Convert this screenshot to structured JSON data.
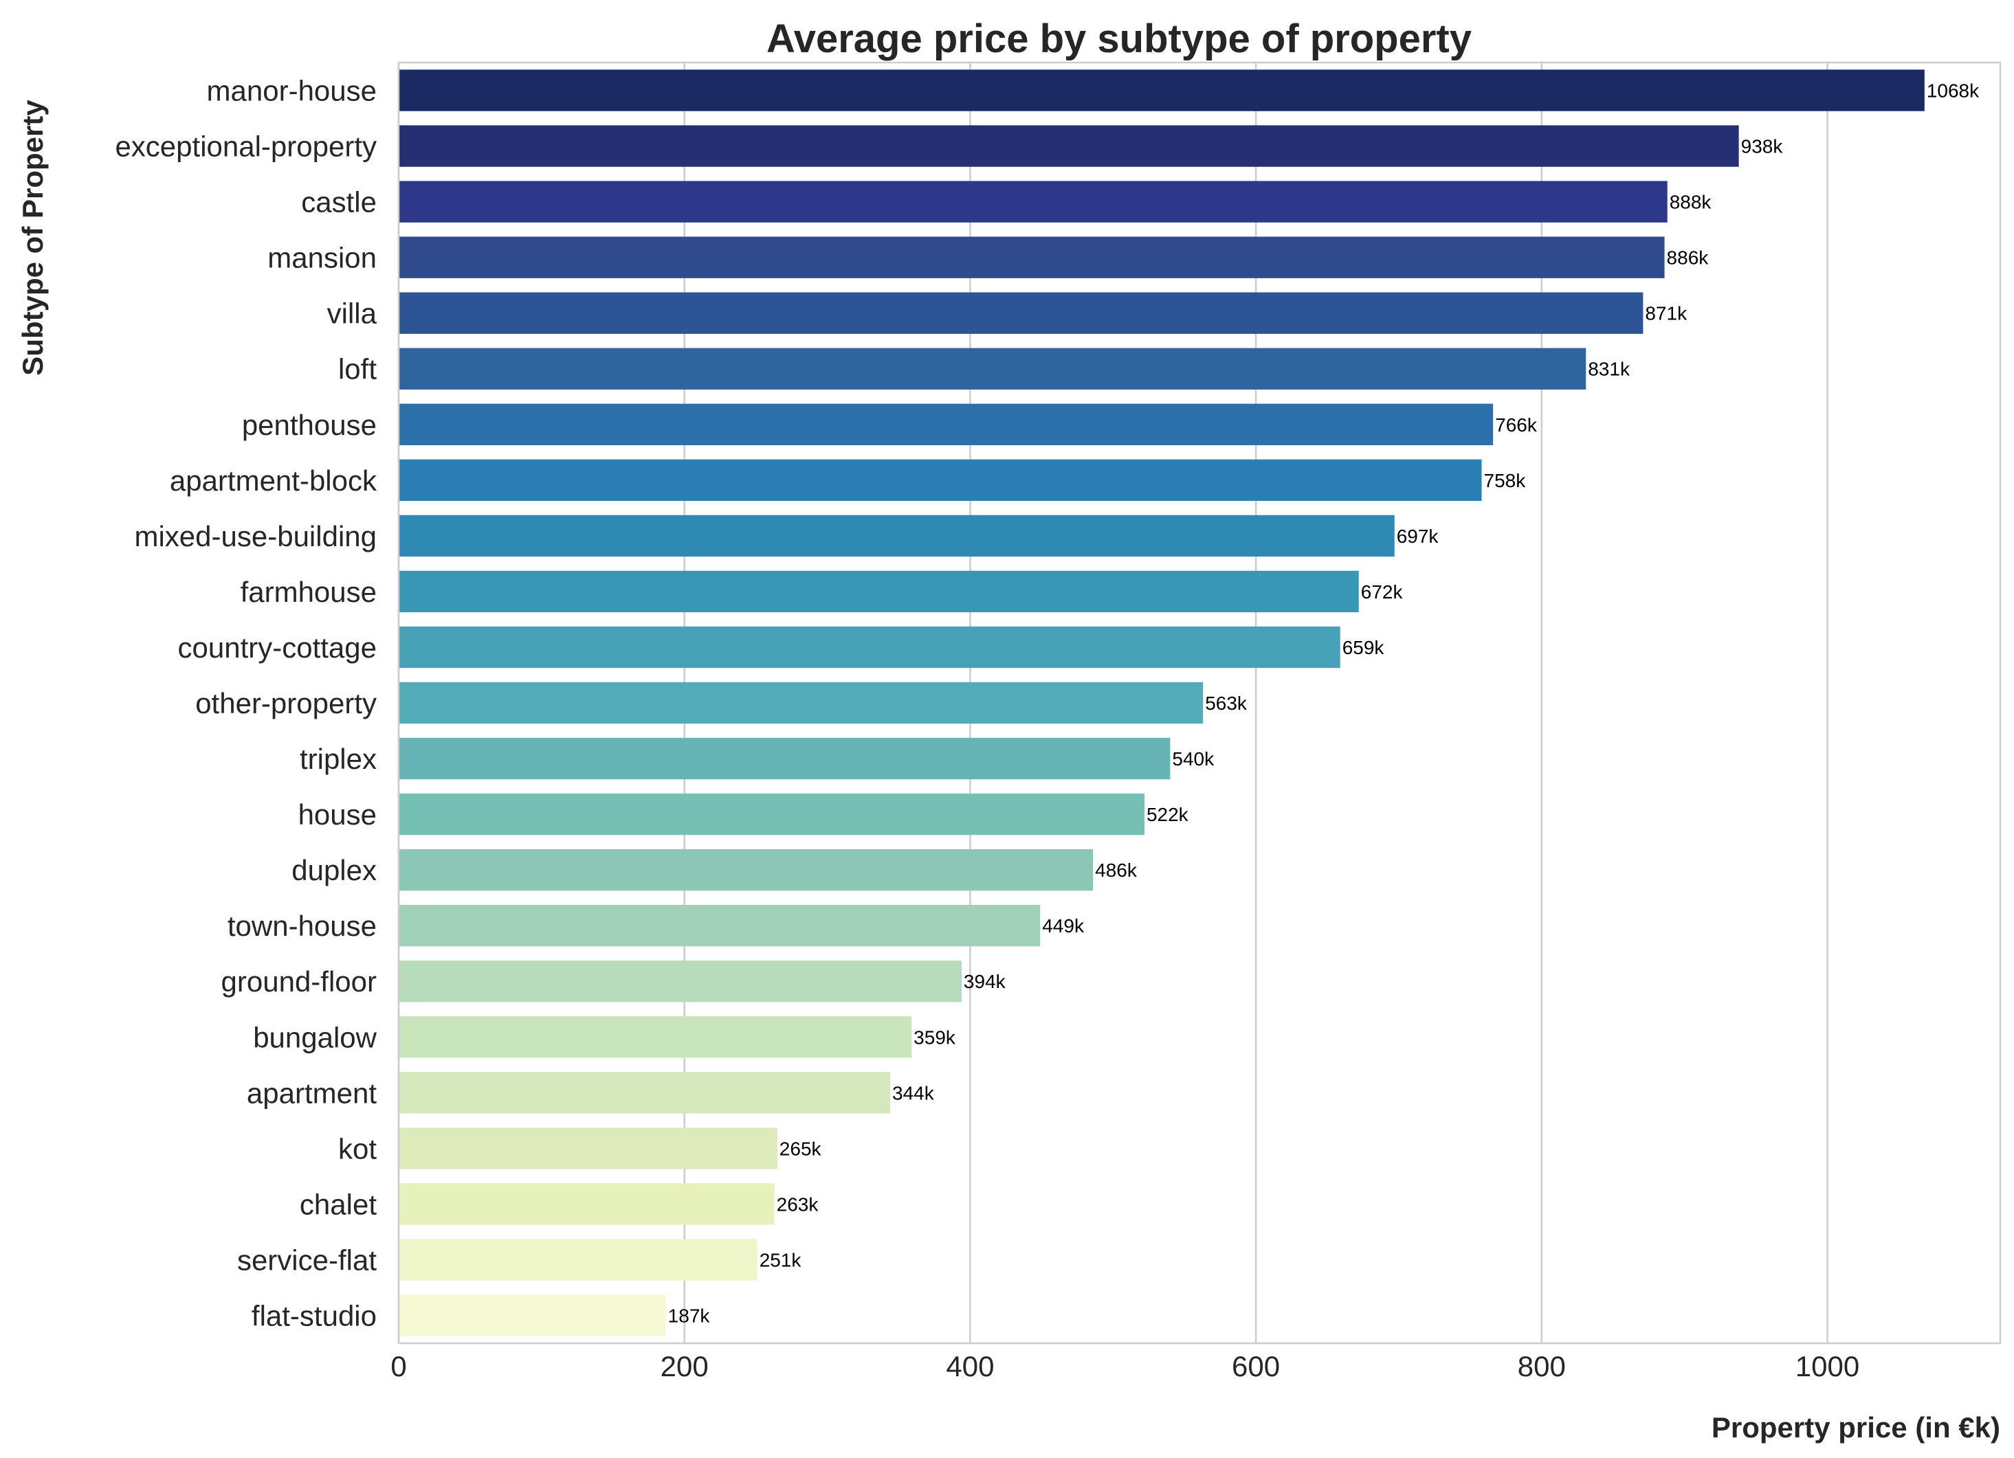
{
  "chart_data": {
    "type": "bar",
    "orientation": "horizontal",
    "title": "Average price by subtype of property",
    "xlabel": "Property price (in €k)",
    "ylabel": "Subtype of Property",
    "xlim": [
      0,
      1121
    ],
    "xticks": [
      0,
      200,
      400,
      600,
      800,
      1000
    ],
    "grid": "vertical",
    "categories": [
      "manor-house",
      "exceptional-property",
      "castle",
      "mansion",
      "villa",
      "loft",
      "penthouse",
      "apartment-block",
      "mixed-use-building",
      "farmhouse",
      "country-cottage",
      "other-property",
      "triplex",
      "house",
      "duplex",
      "town-house",
      "ground-floor",
      "bungalow",
      "apartment",
      "kot",
      "chalet",
      "service-flat",
      "flat-studio"
    ],
    "values": [
      1068,
      938,
      888,
      886,
      871,
      831,
      766,
      758,
      697,
      672,
      659,
      563,
      540,
      522,
      486,
      449,
      394,
      359,
      344,
      265,
      263,
      251,
      187
    ],
    "data_labels": [
      "1068k",
      "938k",
      "888k",
      "886k",
      "871k",
      "831k",
      "766k",
      "758k",
      "697k",
      "672k",
      "659k",
      "563k",
      "540k",
      "522k",
      "486k",
      "449k",
      "394k",
      "359k",
      "344k",
      "265k",
      "263k",
      "251k",
      "187k"
    ],
    "colors": [
      "#1c2a64",
      "#262f72",
      "#2e388a",
      "#304a8e",
      "#2d5595",
      "#2f649f",
      "#2b70aa",
      "#2a7eb3",
      "#2e8ab3",
      "#3a96b5",
      "#47a1b7",
      "#53abb7",
      "#66b4b6",
      "#76bfb5",
      "#8cc7b5",
      "#a0d0b7",
      "#b7dcbb",
      "#c9e5bc",
      "#d4e8bc",
      "#dfeabb",
      "#e6f1bc",
      "#eef5c8",
      "#f5f9d4"
    ]
  }
}
